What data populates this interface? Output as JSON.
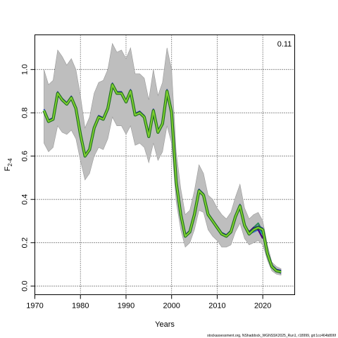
{
  "chart_data": {
    "type": "line",
    "ylabel": "F",
    "ylabel_sub": "2-4",
    "xlabel": "Years",
    "xlim": [
      1970,
      2027
    ],
    "ylim": [
      -0.04,
      1.16
    ],
    "xticks": [
      1970,
      1980,
      1990,
      2000,
      2010,
      2020
    ],
    "yticks": [
      "0.0",
      "0.2",
      "0.4",
      "0.6",
      "0.8",
      "1.0"
    ],
    "grid": true,
    "annotation": "0.11",
    "footer": "stockassessment.org, NShaddock_WGNSSK2025_Run1, r18999, git:1cc464b806f",
    "colors": {
      "band": "#bebebe",
      "band_edge": "#999999",
      "main_line": "#1f6e22",
      "main_fill": "#7ecf2f",
      "retro": [
        "#1a1aa8",
        "#20b2aa",
        "#3c6bd6",
        "#2e8b57",
        "#4b0082"
      ]
    },
    "x": [
      1972,
      1973,
      1974,
      1975,
      1976,
      1977,
      1978,
      1979,
      1980,
      1981,
      1982,
      1983,
      1984,
      1985,
      1986,
      1987,
      1988,
      1989,
      1990,
      1991,
      1992,
      1993,
      1994,
      1995,
      1996,
      1997,
      1998,
      1999,
      2000,
      2001,
      2002,
      2003,
      2004,
      2005,
      2006,
      2007,
      2008,
      2009,
      2010,
      2011,
      2012,
      2013,
      2014,
      2015,
      2016,
      2017,
      2018,
      2019,
      2020,
      2021,
      2022,
      2023,
      2024
    ],
    "series_main": [
      0.81,
      0.76,
      0.77,
      0.89,
      0.86,
      0.84,
      0.87,
      0.82,
      0.7,
      0.6,
      0.63,
      0.73,
      0.78,
      0.77,
      0.82,
      0.93,
      0.89,
      0.89,
      0.85,
      0.9,
      0.79,
      0.8,
      0.78,
      0.69,
      0.81,
      0.71,
      0.75,
      0.9,
      0.8,
      0.48,
      0.33,
      0.23,
      0.25,
      0.33,
      0.44,
      0.42,
      0.33,
      0.3,
      0.27,
      0.24,
      0.23,
      0.25,
      0.32,
      0.37,
      0.28,
      0.24,
      0.26,
      0.27,
      0.26,
      0.15,
      0.09,
      0.07,
      0.065
    ],
    "band_upper": [
      1.0,
      0.93,
      0.95,
      1.09,
      1.06,
      1.02,
      1.05,
      1.0,
      0.88,
      0.73,
      0.78,
      0.89,
      0.94,
      0.95,
      1.0,
      1.12,
      1.08,
      1.09,
      1.05,
      1.1,
      0.98,
      0.98,
      0.96,
      0.86,
      1.0,
      0.88,
      0.94,
      1.1,
      1.0,
      0.62,
      0.45,
      0.33,
      0.35,
      0.44,
      0.56,
      0.52,
      0.42,
      0.4,
      0.36,
      0.33,
      0.31,
      0.34,
      0.41,
      0.47,
      0.36,
      0.31,
      0.33,
      0.34,
      0.3,
      0.19,
      0.11,
      0.09,
      0.08
    ],
    "band_lower": [
      0.66,
      0.62,
      0.64,
      0.74,
      0.71,
      0.7,
      0.72,
      0.68,
      0.58,
      0.49,
      0.52,
      0.6,
      0.64,
      0.63,
      0.68,
      0.78,
      0.74,
      0.74,
      0.7,
      0.74,
      0.65,
      0.66,
      0.64,
      0.57,
      0.66,
      0.58,
      0.62,
      0.74,
      0.66,
      0.39,
      0.26,
      0.18,
      0.2,
      0.26,
      0.35,
      0.34,
      0.26,
      0.23,
      0.21,
      0.18,
      0.18,
      0.19,
      0.25,
      0.29,
      0.22,
      0.19,
      0.2,
      0.21,
      0.19,
      0.12,
      0.07,
      0.055,
      0.05
    ],
    "retro_x": [
      2016,
      2017,
      2018,
      2019,
      2020,
      2021,
      2022,
      2023,
      2024
    ],
    "retro_series": [
      [
        0.28,
        0.24,
        0.26,
        0.27,
        0.25,
        0.14,
        0.09,
        0.07,
        0.06
      ],
      [
        0.28,
        0.24,
        0.26,
        0.26,
        0.24,
        0.15,
        0.09,
        0.07
      ],
      [
        0.28,
        0.24,
        0.25,
        0.26,
        0.26,
        0.16,
        0.1
      ],
      [
        0.28,
        0.25,
        0.27,
        0.29,
        0.25,
        0.16
      ],
      [
        0.28,
        0.25,
        0.27,
        0.26,
        0.22
      ]
    ]
  }
}
